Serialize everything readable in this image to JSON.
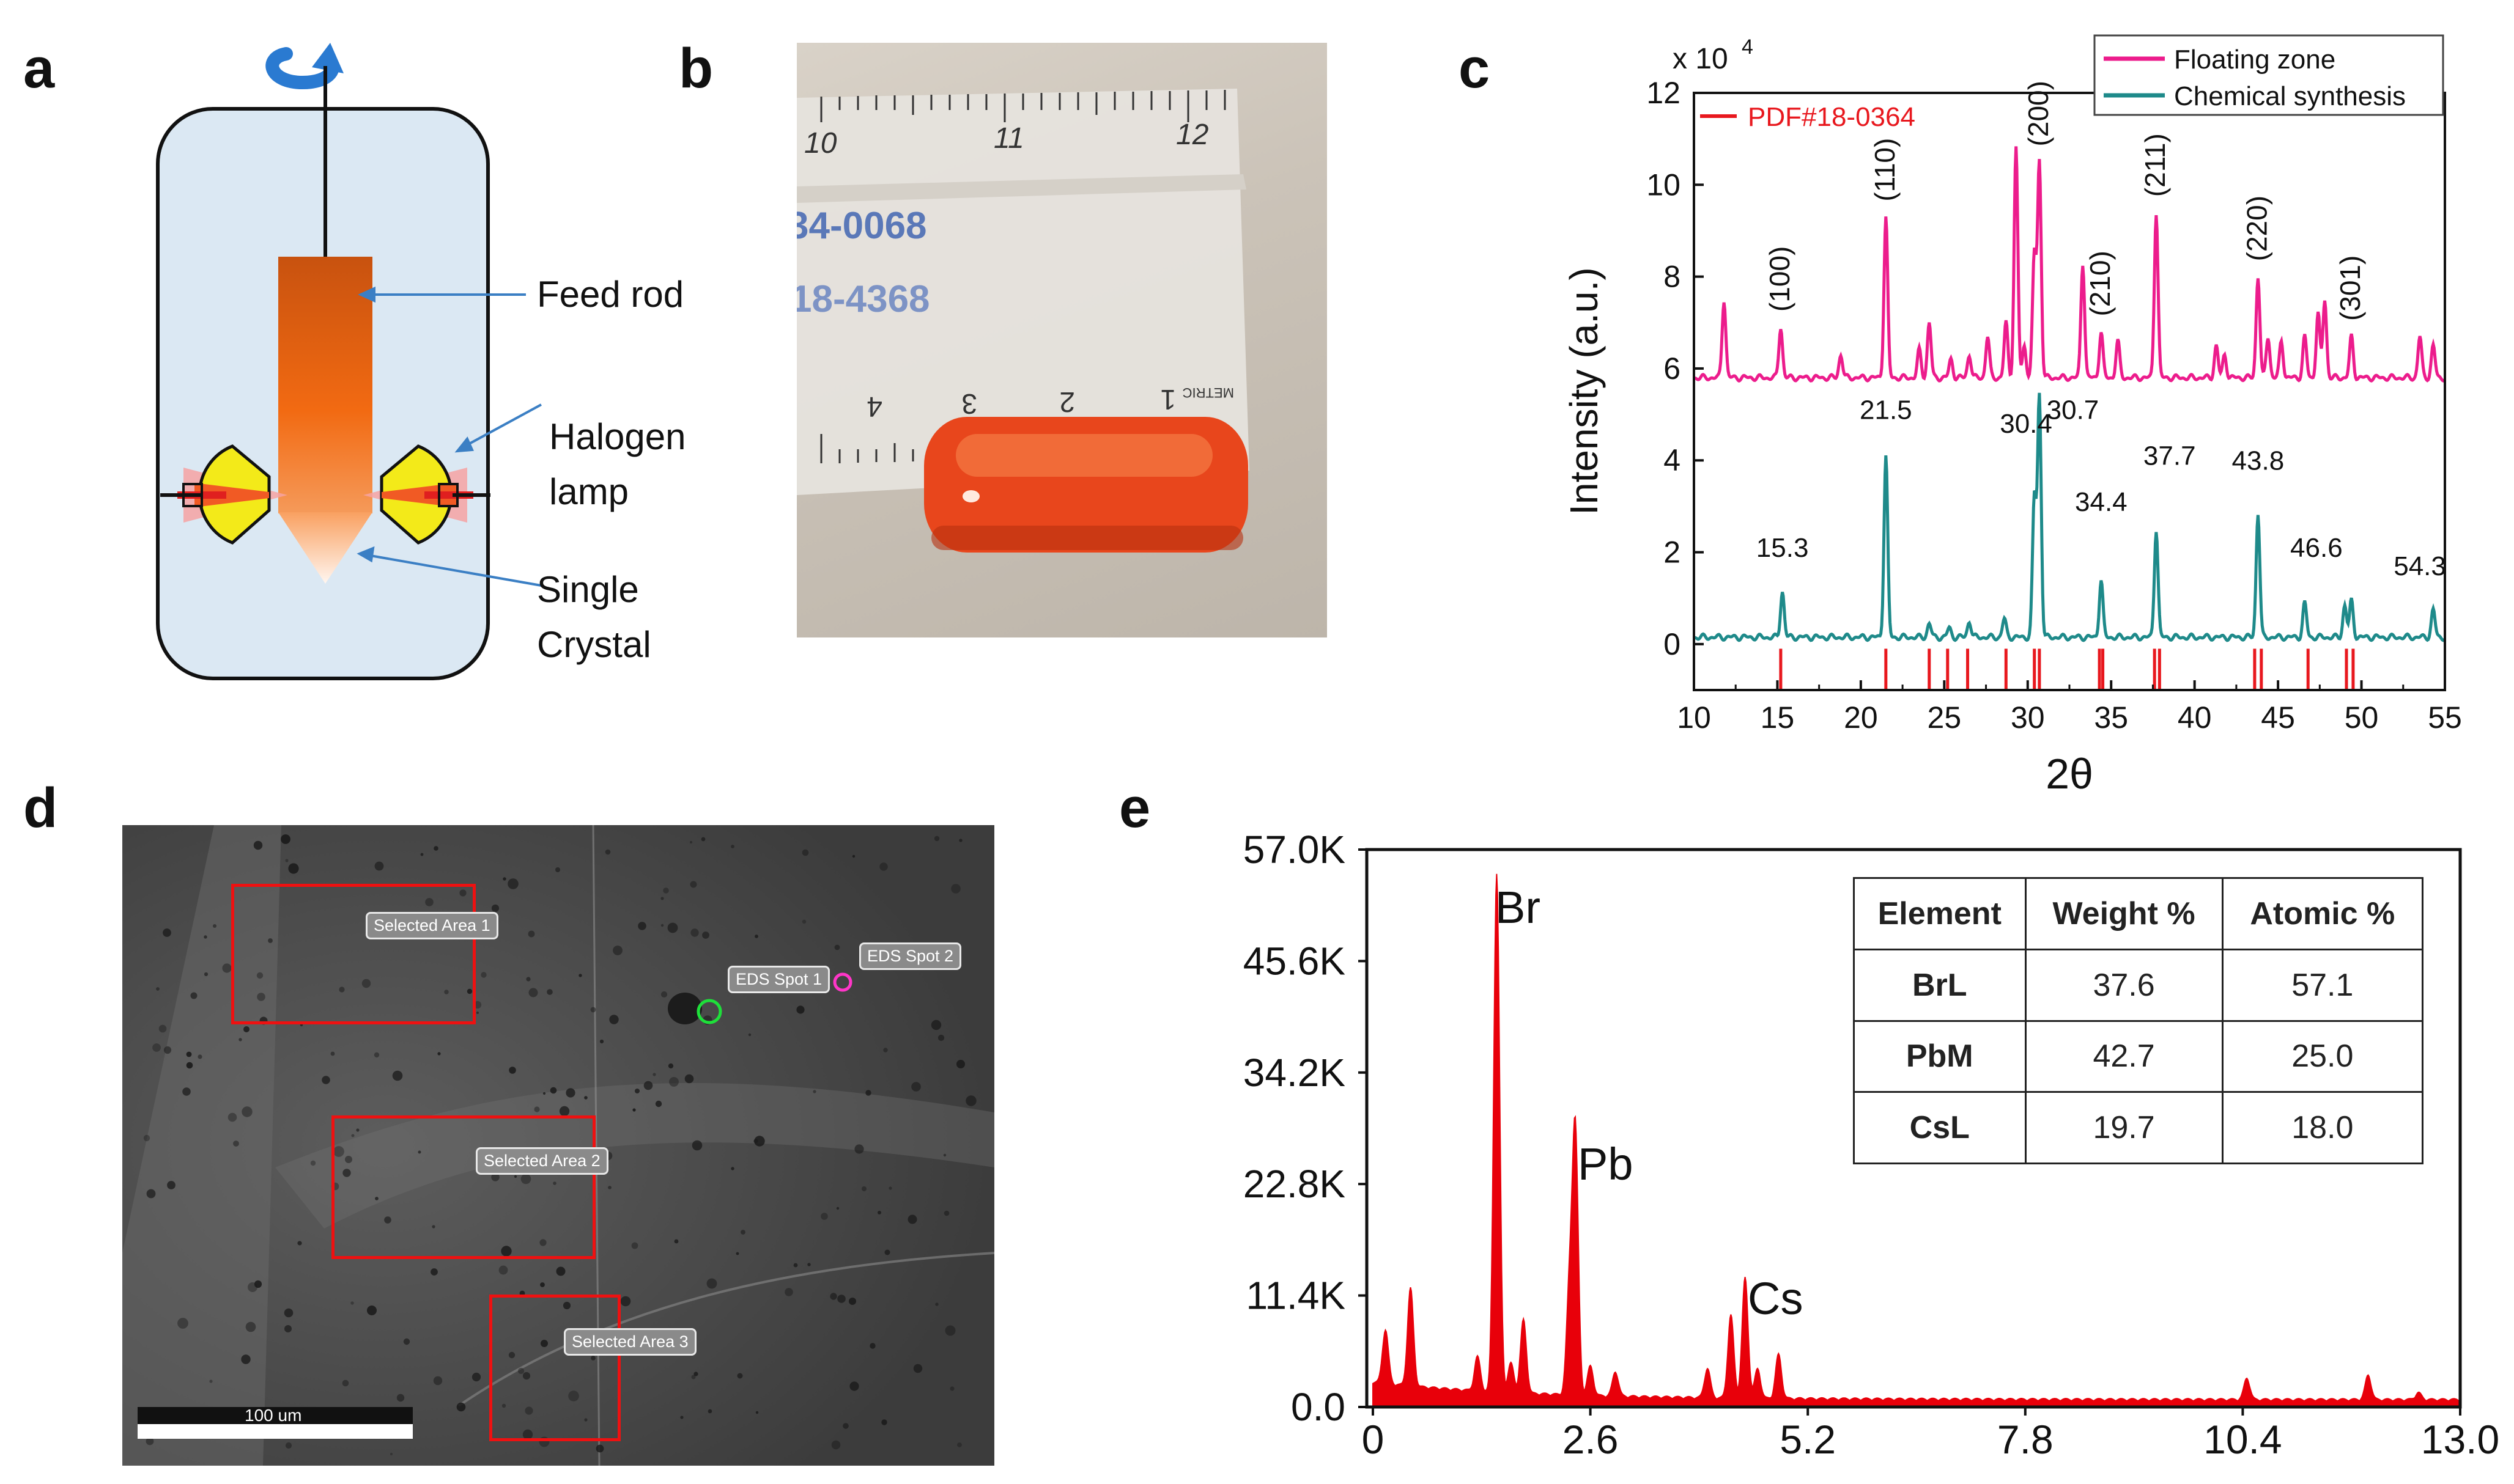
{
  "panel_a": {
    "letter": "a",
    "labels": {
      "feed_rod": "Feed rod",
      "halogen": "Halogen",
      "lamp": "lamp",
      "single": "Single",
      "crystal": "Crystal"
    }
  },
  "panel_b": {
    "letter": "b",
    "ruler_top_numbers": [
      "10",
      "11",
      "12"
    ],
    "ruler_bottom_numbers": [
      "4",
      "3",
      "2",
      "1"
    ],
    "ruler_side_text": "METRIC",
    "handwriting": [
      "34-0068",
      "18-4368"
    ]
  },
  "panel_c": {
    "letter": "c",
    "chart_data": {
      "type": "line",
      "xlabel": "2θ",
      "ylabel": "Intensity (a.u.)",
      "scale_label": "x 10",
      "scale_exponent": "4",
      "xlim": [
        10,
        55
      ],
      "ylim": [
        -1,
        12
      ],
      "x_ticks": [
        "10",
        "15",
        "20",
        "25",
        "30",
        "35",
        "40",
        "45",
        "50",
        "55"
      ],
      "y_ticks": [
        "0",
        "2",
        "4",
        "6",
        "8",
        "10",
        "12"
      ],
      "legend": {
        "placement": "top-right",
        "entries": [
          "Floating zone",
          "Chemical synthesis"
        ]
      },
      "reference_legend": "PDF#18-0364",
      "colors": {
        "floating": "#ec1c8c",
        "chemical": "#1e8a8a",
        "reference": "#e8181e"
      },
      "series": [
        {
          "name": "Floating zone",
          "baseline": 5.8,
          "peaks": [
            [
              11.8,
              7.5
            ],
            [
              15.2,
              6.9
            ],
            [
              18.8,
              6.3
            ],
            [
              21.5,
              9.3
            ],
            [
              23.5,
              6.4
            ],
            [
              24.1,
              7.0
            ],
            [
              25.4,
              6.2
            ],
            [
              26.5,
              6.3
            ],
            [
              27.6,
              6.7
            ],
            [
              28.7,
              7.0
            ],
            [
              29.3,
              10.8
            ],
            [
              29.8,
              6.5
            ],
            [
              30.4,
              8.5
            ],
            [
              30.7,
              10.5
            ],
            [
              33.3,
              8.3
            ],
            [
              34.4,
              6.8
            ],
            [
              35.4,
              6.6
            ],
            [
              37.7,
              9.4
            ],
            [
              41.3,
              6.5
            ],
            [
              41.8,
              6.3
            ],
            [
              43.8,
              8.0
            ],
            [
              44.4,
              6.7
            ],
            [
              45.2,
              6.6
            ],
            [
              46.6,
              6.7
            ],
            [
              47.4,
              7.2
            ],
            [
              47.8,
              7.5
            ],
            [
              49.4,
              6.7
            ],
            [
              53.5,
              6.7
            ],
            [
              54.3,
              6.5
            ]
          ]
        },
        {
          "name": "Chemical synthesis",
          "baseline": 0.15,
          "peaks": [
            [
              15.3,
              1.15
            ],
            [
              21.5,
              4.1
            ],
            [
              24.1,
              0.45
            ],
            [
              25.3,
              0.35
            ],
            [
              26.5,
              0.5
            ],
            [
              28.6,
              0.55
            ],
            [
              30.4,
              3.2
            ],
            [
              30.7,
              5.4
            ],
            [
              34.4,
              1.4
            ],
            [
              37.7,
              2.5
            ],
            [
              43.8,
              2.85
            ],
            [
              46.6,
              0.9
            ],
            [
              49.0,
              0.85
            ],
            [
              49.4,
              0.95
            ],
            [
              54.3,
              0.75
            ]
          ]
        }
      ],
      "reference_lines": [
        15.2,
        21.5,
        24.1,
        25.2,
        26.4,
        28.7,
        30.4,
        30.7,
        34.3,
        34.5,
        37.6,
        37.9,
        43.6,
        44.0,
        46.8,
        49.1,
        49.5
      ],
      "peak_labels_top": [
        {
          "text": "(100)",
          "x": 15.2,
          "y": 7.05
        },
        {
          "text": "(110)",
          "x": 21.5,
          "y": 9.45
        },
        {
          "text": "(200)",
          "x": 30.7,
          "y": 10.65
        },
        {
          "text": "(210)",
          "x": 34.4,
          "y": 6.95
        },
        {
          "text": "(211)",
          "x": 37.7,
          "y": 9.55
        },
        {
          "text": "(220)",
          "x": 43.8,
          "y": 8.15
        },
        {
          "text": "(301)",
          "x": 49.4,
          "y": 6.85
        }
      ],
      "peak_labels_bottom": [
        {
          "text": "15.3",
          "x": 15.3,
          "y": 1.9
        },
        {
          "text": "21.5",
          "x": 21.5,
          "y": 4.9
        },
        {
          "text": "30.4",
          "x": 29.9,
          "y": 4.6
        },
        {
          "text": "30.7",
          "x": 32.7,
          "y": 4.9
        },
        {
          "text": "34.4",
          "x": 34.4,
          "y": 2.9
        },
        {
          "text": "37.7",
          "x": 38.5,
          "y": 3.9
        },
        {
          "text": "43.8",
          "x": 43.8,
          "y": 3.8
        },
        {
          "text": "46.6",
          "x": 47.3,
          "y": 1.9
        },
        {
          "text": "54.3",
          "x": 53.5,
          "y": 1.5
        }
      ]
    }
  },
  "panel_d": {
    "letter": "d",
    "labels": [
      "Selected Area 1",
      "Selected Area 2",
      "Selected Area 3",
      "EDS Spot 1",
      "EDS Spot 2"
    ],
    "scalebar": "100 um"
  },
  "panel_e": {
    "letter": "e",
    "chart_data": {
      "type": "area",
      "xlim": [
        0,
        13.0
      ],
      "ylim": [
        0,
        57000
      ],
      "x_ticks": [
        "0",
        "2.6",
        "5.2",
        "7.8",
        "10.4",
        "13.0"
      ],
      "y_ticks": [
        "0.0",
        "11.4K",
        "22.8K",
        "34.2K",
        "45.6K",
        "57.0K"
      ],
      "color": "#e8000a",
      "peaks": [
        [
          0.15,
          5500
        ],
        [
          0.45,
          10000
        ],
        [
          1.25,
          3500
        ],
        [
          1.48,
          53000
        ],
        [
          1.65,
          3000
        ],
        [
          1.8,
          7500
        ],
        [
          2.35,
          4500
        ],
        [
          2.35,
          6000
        ],
        [
          2.42,
          27000
        ],
        [
          2.6,
          3000
        ],
        [
          2.9,
          2500
        ],
        [
          4.0,
          3000
        ],
        [
          4.28,
          8500
        ],
        [
          4.45,
          12300
        ],
        [
          4.6,
          3000
        ],
        [
          4.85,
          4500
        ],
        [
          10.45,
          2200
        ],
        [
          11.9,
          2500
        ],
        [
          12.5,
          700
        ]
      ],
      "element_labels": [
        "Br",
        "Pb",
        "Cs"
      ],
      "table": {
        "headers": [
          "Element",
          "Weight %",
          "Atomic %"
        ],
        "rows": [
          [
            "BrL",
            "37.6",
            "57.1"
          ],
          [
            "PbM",
            "42.7",
            "25.0"
          ],
          [
            "CsL",
            "19.7",
            "18.0"
          ]
        ]
      }
    }
  }
}
